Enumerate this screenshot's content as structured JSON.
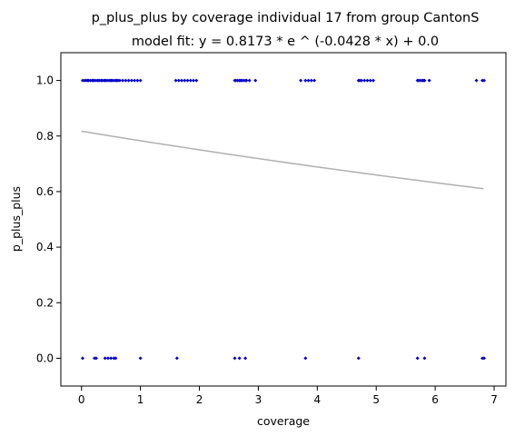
{
  "chart_data": {
    "type": "scatter",
    "title": "p_plus_plus by coverage individual 17 from group CantonS",
    "subtitle": "model fit: y = 0.8173 * e ^ (-0.0428 * x) + 0.0",
    "xlabel": "coverage",
    "ylabel": "p_plus_plus",
    "xlim": [
      -0.35,
      7.2
    ],
    "ylim": [
      -0.1,
      1.1
    ],
    "x_ticks": [
      0,
      1,
      2,
      3,
      4,
      5,
      6,
      7
    ],
    "y_ticks": [
      0.0,
      0.2,
      0.4,
      0.6,
      0.8,
      1.0
    ],
    "x_tick_labels": [
      "0",
      "1",
      "2",
      "3",
      "4",
      "5",
      "6",
      "7"
    ],
    "y_tick_labels": [
      "0.0",
      "0.2",
      "0.4",
      "0.6",
      "0.8",
      "1.0"
    ],
    "grid": false,
    "colors": {
      "points": "#0000cc",
      "fit_line": "#b0b0b0"
    },
    "fit": {
      "a": 0.8173,
      "b": -0.0428,
      "c": 0.0,
      "x_range": [
        0,
        6.82
      ]
    },
    "points_y1": [
      0.02,
      0.05,
      0.08,
      0.1,
      0.12,
      0.15,
      0.18,
      0.2,
      0.22,
      0.25,
      0.28,
      0.3,
      0.33,
      0.35,
      0.38,
      0.4,
      0.42,
      0.45,
      0.48,
      0.5,
      0.52,
      0.55,
      0.58,
      0.6,
      0.62,
      0.65,
      0.7,
      0.75,
      0.8,
      0.85,
      0.9,
      0.95,
      1.0,
      1.6,
      1.65,
      1.7,
      1.75,
      1.8,
      1.85,
      1.9,
      1.95,
      2.6,
      2.62,
      2.65,
      2.68,
      2.7,
      2.72,
      2.75,
      2.78,
      2.8,
      2.85,
      2.95,
      3.72,
      3.8,
      3.85,
      3.9,
      3.95,
      4.7,
      4.72,
      4.75,
      4.8,
      4.85,
      4.9,
      4.95,
      5.7,
      5.72,
      5.75,
      5.78,
      5.8,
      5.82,
      5.9,
      6.7,
      6.8,
      6.83
    ],
    "points_y0": [
      0.02,
      0.22,
      0.25,
      0.4,
      0.45,
      0.5,
      0.55,
      0.58,
      1.0,
      1.62,
      2.6,
      2.68,
      2.78,
      3.8,
      4.7,
      5.7,
      5.82,
      6.8,
      6.83
    ]
  }
}
